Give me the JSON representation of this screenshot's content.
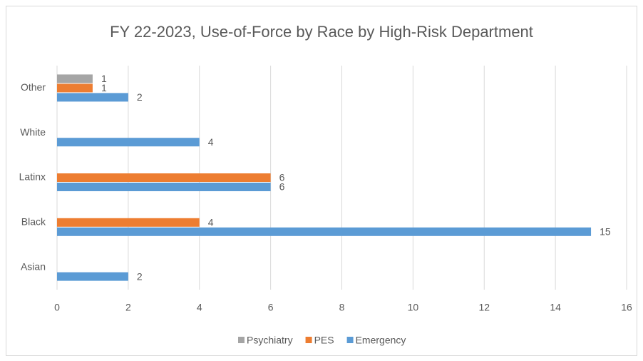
{
  "chart_data": {
    "type": "hbar",
    "title": "FY 22-2023,  Use-of-Force by Race by High-Risk Department",
    "categories": [
      "Asian",
      "Black",
      "Latinx",
      "White",
      "Other"
    ],
    "series": [
      {
        "name": "Emergency",
        "color": "#5b9bd5",
        "values": [
          2,
          15,
          6,
          4,
          2
        ]
      },
      {
        "name": "PES",
        "color": "#ed7d31",
        "values": [
          null,
          4,
          6,
          null,
          1
        ]
      },
      {
        "name": "Psychiatry",
        "color": "#a5a5a5",
        "values": [
          null,
          null,
          null,
          null,
          1
        ]
      }
    ],
    "xlim": [
      0,
      16
    ],
    "xticks": [
      0,
      2,
      4,
      6,
      8,
      10,
      12,
      14,
      16
    ],
    "grid": true,
    "legend": "bottom"
  }
}
